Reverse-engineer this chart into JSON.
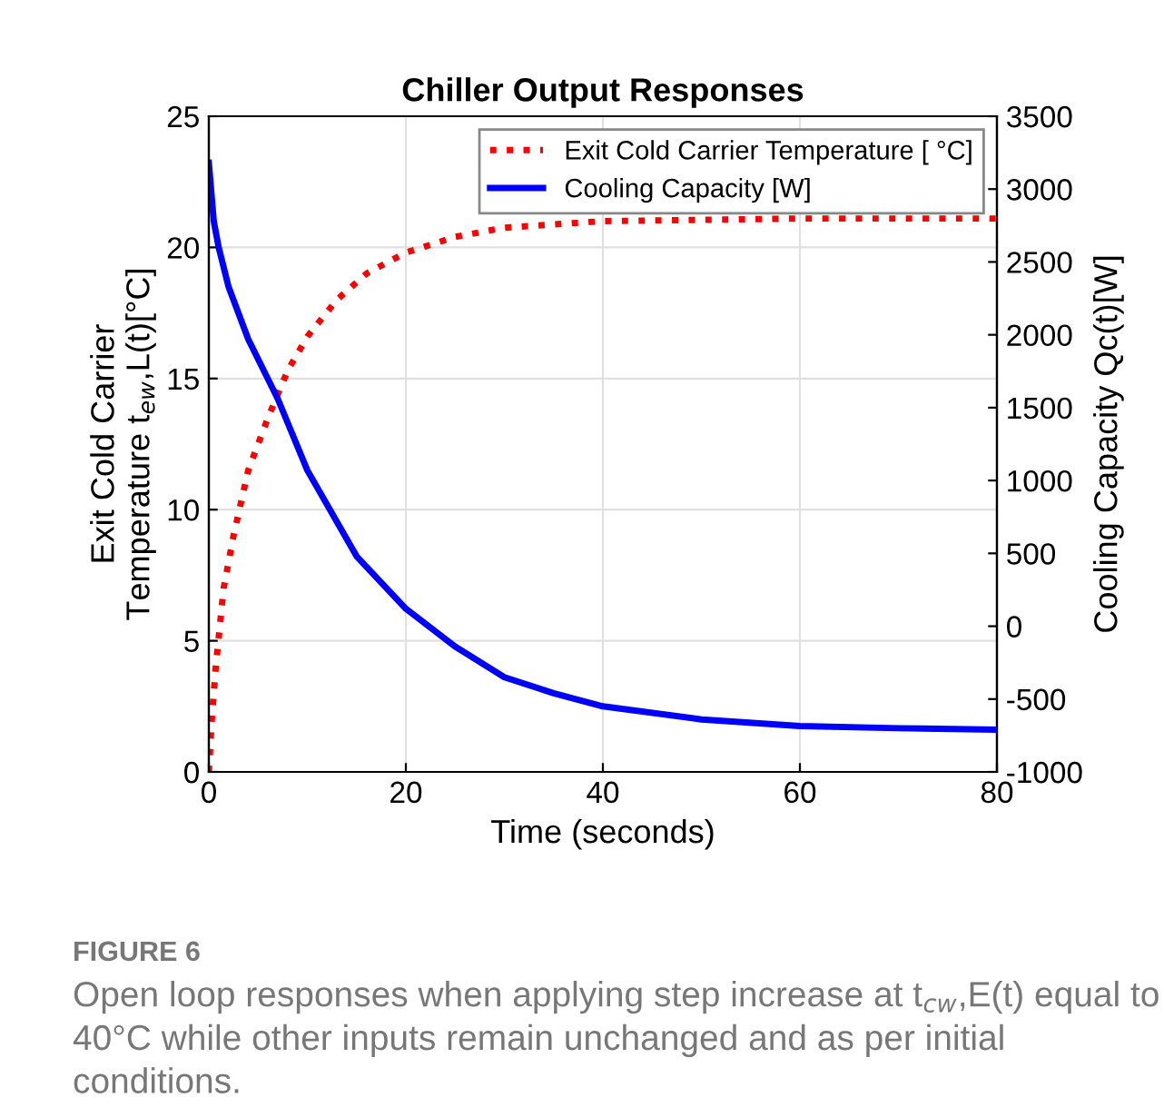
{
  "chart_data": {
    "type": "line",
    "title": "Chiller Output Responses",
    "xlabel": "Time (seconds)",
    "ylabel": "Exit Cold Carrier\nTemperature t$_{ew}$,L(t)[°C]",
    "y2label": "Cooling Capacity Qc(t)[W]",
    "xlim": [
      0,
      80
    ],
    "xticks": [
      0,
      20,
      40,
      60,
      80
    ],
    "ylim": [
      0,
      25
    ],
    "yticks": [
      0,
      5,
      10,
      15,
      20,
      25
    ],
    "y2lim": [
      -1000,
      3500
    ],
    "y2ticks": [
      -1000,
      -500,
      0,
      500,
      1000,
      1500,
      2000,
      2500,
      3000,
      3500
    ],
    "grid": true,
    "legend": "top right",
    "series": [
      {
        "name": "Exit Cold Carrier Temperature [ °C]",
        "color": "#ff0000",
        "line_style": "dotted",
        "x": [
          0,
          0.3,
          0.7,
          1.5,
          2.5,
          4,
          6,
          8,
          10,
          13,
          16,
          20,
          25,
          30,
          40,
          50,
          60,
          80
        ],
        "values": [
          0,
          2,
          4,
          7,
          9,
          11.5,
          13.5,
          15.3,
          16.6,
          18,
          19,
          19.8,
          20.4,
          20.75,
          21.0,
          21.05,
          21.1,
          21.1
        ]
      },
      {
        "name": "Cooling Capacity [W]",
        "color": "#0000ff",
        "line_style": "solid",
        "axis": "y2",
        "x": [
          0,
          0.5,
          1,
          2,
          4,
          7,
          10,
          15,
          20,
          25,
          30,
          35,
          40,
          50,
          60,
          70,
          80
        ],
        "values": [
          3180,
          2780,
          2600,
          2330,
          1970,
          1560,
          1070,
          480,
          120,
          -140,
          -350,
          -460,
          -550,
          -640,
          -685,
          -700,
          -710
        ]
      }
    ],
    "annotations": [
      "FIGURE 6",
      "Open loop responses when applying step increase at t$_{cw}$,E(t) equal to 40°C while other inputs remain unchanged and as per initial conditions."
    ]
  }
}
